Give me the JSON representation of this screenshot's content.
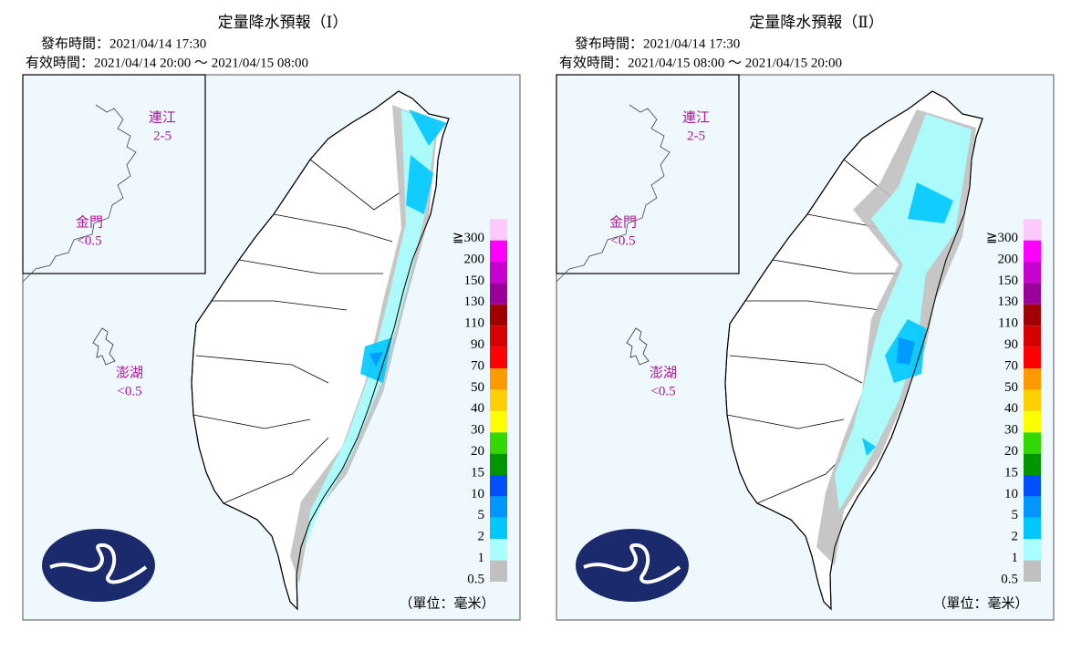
{
  "panels": [
    {
      "title": "定量降水預報（Ⅰ）",
      "issued": "發布時間：2021/04/14 17:30",
      "valid": "有效時間：2021/04/14 20:00 ～ 2021/04/15 08:00",
      "insets": [
        {
          "name": "連江",
          "value": "2-5"
        },
        {
          "name": "金門",
          "value": "<0.5"
        },
        {
          "name": "澎湖",
          "value": "<0.5"
        }
      ]
    },
    {
      "title": "定量降水預報（Ⅱ）",
      "issued": "發布時間：2021/04/14 17:30",
      "valid": "有效時間：2021/04/15 08:00 ～ 2021/04/15 20:00",
      "insets": [
        {
          "name": "連江",
          "value": "2-5"
        },
        {
          "name": "金門",
          "value": "<0.5"
        },
        {
          "name": "澎湖",
          "value": "<0.5"
        }
      ]
    }
  ],
  "legend": {
    "labels": [
      "0.5",
      "1",
      "2",
      "5",
      "10",
      "15",
      "20",
      "30",
      "40",
      "50",
      "70",
      "90",
      "110",
      "130",
      "150",
      "200",
      "≧300"
    ],
    "colors": [
      "#c0c0c0",
      "#a8fffe",
      "#00c8ff",
      "#0096ff",
      "#0050ff",
      "#009600",
      "#32d800",
      "#ffff00",
      "#ffd000",
      "#ff9900",
      "#ff0000",
      "#d70000",
      "#a00000",
      "#9a0099",
      "#c800cf",
      "#ff00ff",
      "#ffc8ff"
    ],
    "unit": "（單位：毫米）"
  }
}
